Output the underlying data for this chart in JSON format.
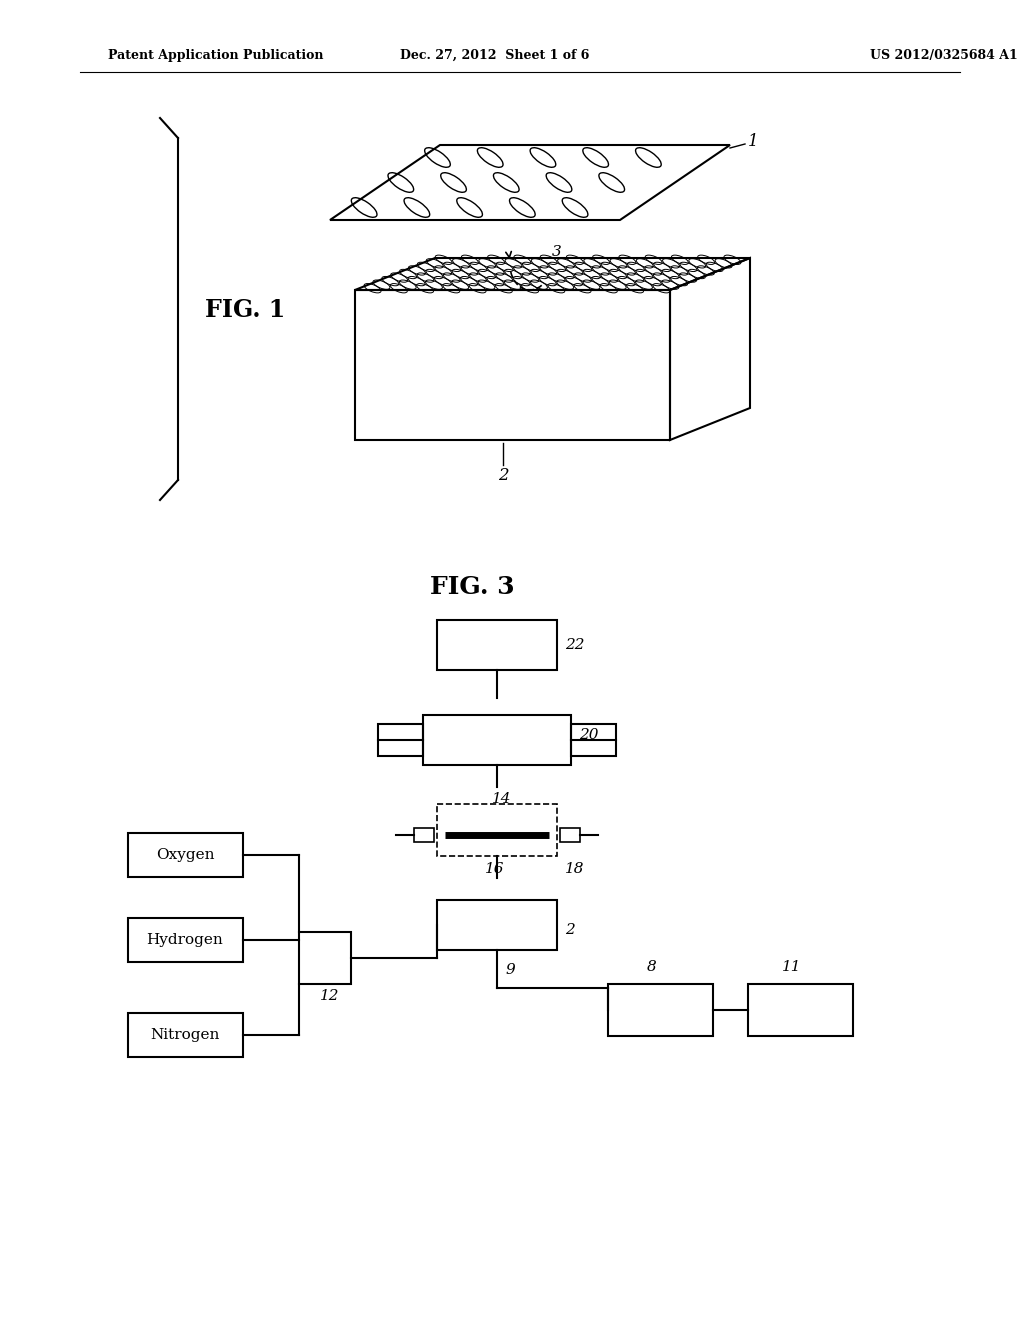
{
  "header_left": "Patent Application Publication",
  "header_center": "Dec. 27, 2012  Sheet 1 of 6",
  "header_right": "US 2012/0325684 A1",
  "fig1_label": "FIG. 1",
  "fig3_label": "FIG. 3",
  "bg_color": "#ffffff",
  "line_color": "#000000",
  "label_1": "1",
  "label_2": "2",
  "label_3": "3",
  "label_8": "8",
  "label_9": "9",
  "label_11": "11",
  "label_12": "12",
  "label_14": "14",
  "label_16": "16",
  "label_18": "18",
  "label_20": "20",
  "label_22": "22",
  "box_oxygen": "Oxygen",
  "box_hydrogen": "Hydrogen",
  "box_nitrogen": "Nitrogen"
}
